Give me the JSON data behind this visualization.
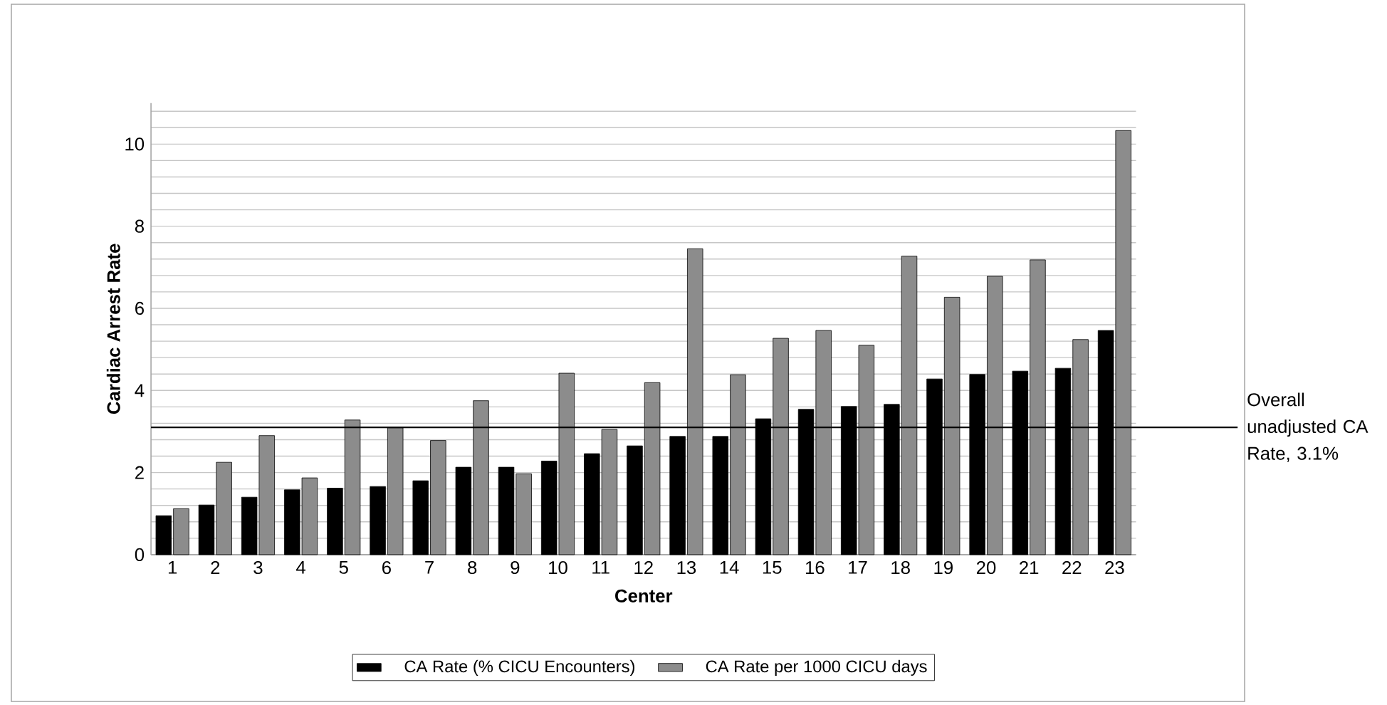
{
  "chart_data": {
    "type": "bar",
    "xlabel": "Center",
    "ylabel": "Cardiac Arrest Rate",
    "categories": [
      "1",
      "2",
      "3",
      "4",
      "5",
      "6",
      "7",
      "8",
      "9",
      "10",
      "11",
      "12",
      "13",
      "14",
      "15",
      "16",
      "17",
      "18",
      "19",
      "20",
      "21",
      "22",
      "23"
    ],
    "series": [
      {
        "name": "CA Rate (% CICU Encounters)",
        "color": "#000000",
        "values": [
          0.95,
          1.21,
          1.4,
          1.58,
          1.62,
          1.66,
          1.8,
          2.13,
          2.13,
          2.28,
          2.46,
          2.65,
          2.88,
          2.88,
          3.31,
          3.54,
          3.61,
          3.66,
          4.28,
          4.39,
          4.47,
          4.54,
          5.46
        ]
      },
      {
        "name": "CA Rate per 1000 CICU days",
        "color": "#8c8c8c",
        "values": [
          1.12,
          2.25,
          2.9,
          1.87,
          3.28,
          3.09,
          2.78,
          3.75,
          1.97,
          4.42,
          3.05,
          4.19,
          7.45,
          4.38,
          5.27,
          5.46,
          5.1,
          7.27,
          6.27,
          6.78,
          7.18,
          5.24,
          10.33
        ]
      }
    ],
    "ylim": [
      0,
      11
    ],
    "yticks": [
      0,
      {
        "value": 0.4,
        "label": null
      },
      {
        "value": 0.8,
        "label": null
      },
      {
        "value": 1.2,
        "label": null
      },
      {
        "value": 1.6,
        "label": null
      },
      2,
      {
        "value": 2.4,
        "label": null
      },
      {
        "value": 2.8,
        "label": null
      },
      {
        "value": 3.2,
        "label": null
      },
      {
        "value": 3.6,
        "label": null
      },
      4,
      {
        "value": 4.4,
        "label": null
      },
      {
        "value": 4.8,
        "label": null
      },
      {
        "value": 5.2,
        "label": null
      },
      {
        "value": 5.6,
        "label": null
      },
      6,
      {
        "value": 6.4,
        "label": null
      },
      {
        "value": 6.8,
        "label": null
      },
      {
        "value": 7.2,
        "label": null
      },
      {
        "value": 7.6,
        "label": null
      },
      8,
      {
        "value": 8.4,
        "label": null
      },
      {
        "value": 8.8,
        "label": null
      },
      {
        "value": 9.2,
        "label": null
      },
      {
        "value": 9.6,
        "label": null
      },
      10,
      {
        "value": 10.4,
        "label": null
      },
      {
        "value": 10.8,
        "label": null
      }
    ],
    "grid": "y",
    "legend": "bottom",
    "ref_lines": [
      {
        "axis": "y",
        "value": 3.1,
        "label": "Overall unadjusted CA Rate, 3.1%",
        "color": "#000000"
      }
    ]
  }
}
